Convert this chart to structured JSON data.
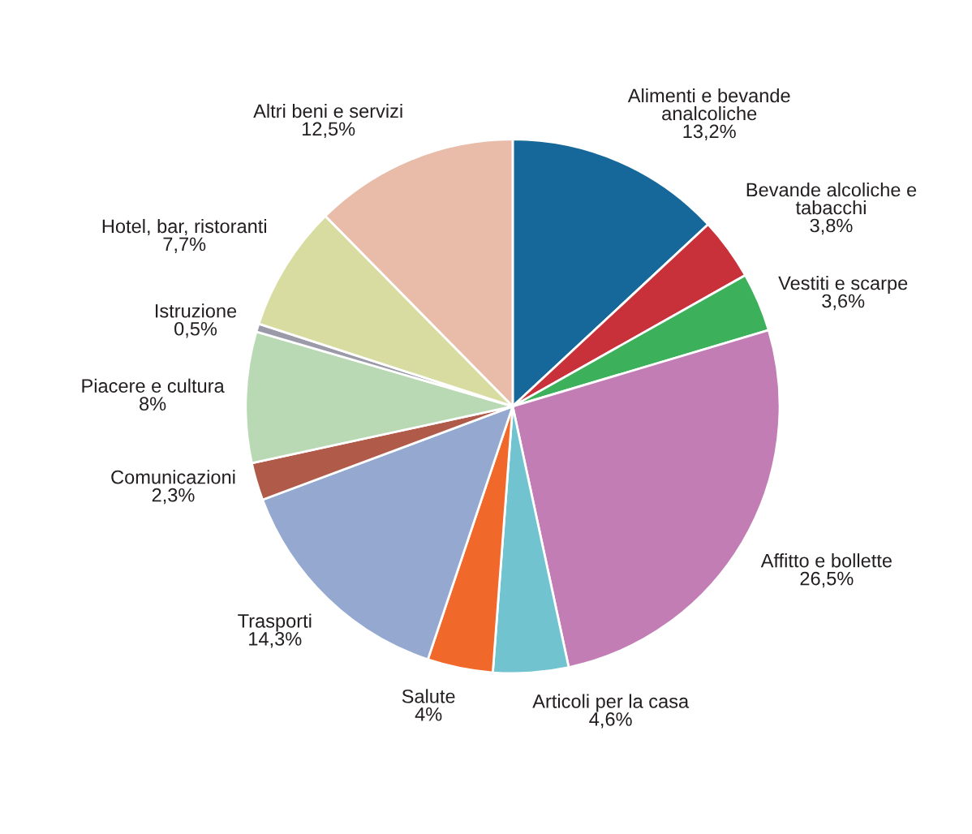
{
  "chart_data": {
    "type": "pie",
    "categories": [
      "Alimenti e bevande\nanalcoliche",
      "Bevande alcoliche e\ntabacchi",
      "Vestiti e scarpe",
      "Affitto e bollette",
      "Articoli per la casa",
      "Salute",
      "Trasporti",
      "Comunicazioni",
      "Piacere e cultura",
      "Istruzione",
      "Hotel, bar, ristoranti",
      "Altri beni e servizi"
    ],
    "values": [
      13.2,
      3.8,
      3.6,
      26.5,
      4.6,
      4,
      14.3,
      2.3,
      8,
      0.5,
      7.7,
      12.5
    ],
    "value_labels": [
      "13,2%",
      "3,8%",
      "3,6%",
      "26,5%",
      "4,6%",
      "4%",
      "14,3%",
      "2,3%",
      "8%",
      "0,5%",
      "7,7%",
      "12,5%"
    ],
    "colors": [
      "#17689a",
      "#c8303a",
      "#3cb05a",
      "#c27db5",
      "#72c3d0",
      "#f0692a",
      "#95a9d0",
      "#b05a4a",
      "#b9d9b4",
      "#9a9aa8",
      "#d9dca0",
      "#e8bca8"
    ]
  }
}
